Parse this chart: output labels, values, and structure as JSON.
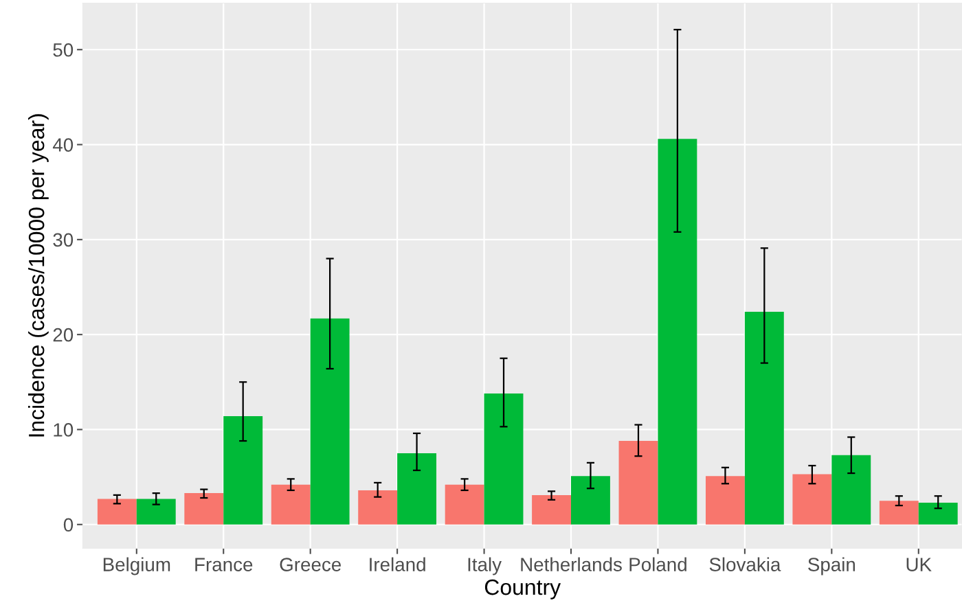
{
  "chart_data": {
    "type": "bar",
    "xlabel": "Country",
    "ylabel": "Incidence (cases/10000 per year)",
    "categories": [
      "Belgium",
      "France",
      "Greece",
      "Ireland",
      "Italy",
      "Netherlands",
      "Poland",
      "Slovakia",
      "Spain",
      "UK"
    ],
    "series": [
      {
        "color": "#f8766d",
        "values": [
          2.7,
          3.3,
          4.2,
          3.6,
          4.2,
          3.1,
          8.8,
          5.1,
          5.3,
          2.5
        ],
        "errors": [
          [
            2.2,
            3.1
          ],
          [
            2.8,
            3.7
          ],
          [
            3.6,
            4.8
          ],
          [
            2.9,
            4.4
          ],
          [
            3.6,
            4.8
          ],
          [
            2.6,
            3.5
          ],
          [
            7.2,
            10.5
          ],
          [
            4.3,
            6.0
          ],
          [
            4.3,
            6.2
          ],
          [
            2.0,
            3.0
          ]
        ]
      },
      {
        "color": "#00ba38",
        "values": [
          2.7,
          11.4,
          21.7,
          7.5,
          13.8,
          5.1,
          40.6,
          22.4,
          7.3,
          2.3
        ],
        "errors": [
          [
            2.1,
            3.3
          ],
          [
            8.8,
            15.0
          ],
          [
            16.4,
            28.0
          ],
          [
            5.7,
            9.6
          ],
          [
            10.3,
            17.5
          ],
          [
            3.8,
            6.5
          ],
          [
            30.8,
            52.1
          ],
          [
            17.0,
            29.1
          ],
          [
            5.4,
            9.2
          ],
          [
            1.7,
            3.0
          ]
        ]
      }
    ],
    "ylim": [
      -2.5,
      54.9
    ],
    "yticks": [
      0,
      10,
      20,
      30,
      40,
      50
    ],
    "grid": true,
    "legend": false
  }
}
